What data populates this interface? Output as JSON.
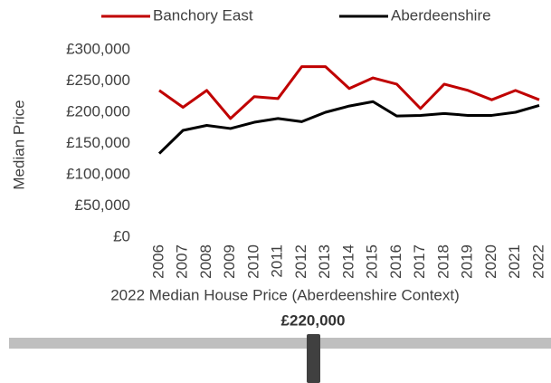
{
  "chart_data": {
    "type": "line",
    "y_label": "Median Price",
    "categories": [
      "2006",
      "2007",
      "2008",
      "2009",
      "2010",
      "2011",
      "2012",
      "2013",
      "2014",
      "2015",
      "2016",
      "2017",
      "2018",
      "2019",
      "2020",
      "2021",
      "2022"
    ],
    "series": [
      {
        "name": "Banchory East",
        "color": "#c00000",
        "values": [
          235000,
          208000,
          235000,
          190000,
          225000,
          222000,
          273000,
          273000,
          238000,
          255000,
          245000,
          206000,
          245000,
          235000,
          220000,
          235000,
          220000
        ]
      },
      {
        "name": "Aberdeenshire",
        "color": "#000000",
        "values": [
          134000,
          171000,
          179000,
          174000,
          184000,
          190000,
          185000,
          200000,
          210000,
          217000,
          194000,
          195000,
          198000,
          195000,
          195000,
          200000,
          211000
        ]
      }
    ],
    "ylim": [
      0,
      300000
    ],
    "yticks": [
      {
        "value": 0,
        "label": "£0"
      },
      {
        "value": 50000,
        "label": "£50,000"
      },
      {
        "value": 100000,
        "label": "£100,000"
      },
      {
        "value": 150000,
        "label": "£150,000"
      },
      {
        "value": 200000,
        "label": "£200,000"
      },
      {
        "value": 250000,
        "label": "£250,000"
      },
      {
        "value": 300000,
        "label": "£300,000"
      }
    ],
    "grid": false
  },
  "indicator": {
    "title": "2022 Median House Price (Aberdeenshire Context)",
    "value_label": "£220,000"
  }
}
